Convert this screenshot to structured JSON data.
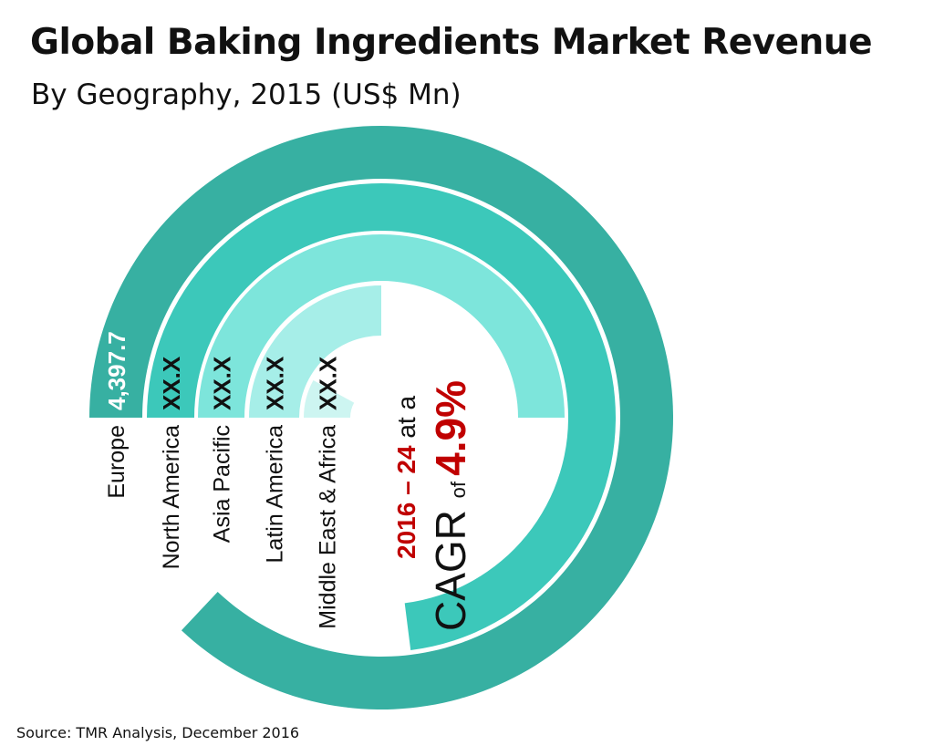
{
  "header": {
    "title": "Global Baking Ingredients Market Revenue",
    "subtitle": "By Geography, 2015 (US$ Mn)"
  },
  "footer": {
    "source": "Source: TMR Analysis, December 2016"
  },
  "chart_data": {
    "type": "radial-bar",
    "title": "Global Baking Ingredients Market Revenue",
    "subtitle": "By Geography, 2015 (US$ Mn)",
    "categories": [
      "Europe",
      "North America",
      "Asia Pacific",
      "Latin America",
      "Middle East & Africa"
    ],
    "value_labels": [
      "4,397.7",
      "XX.X",
      "XX.X",
      "XX.X",
      "XX.X"
    ],
    "values": [
      4397.7,
      null,
      null,
      null,
      null
    ],
    "arc_fraction_of_circle": [
      0.87,
      0.73,
      0.5,
      0.25,
      0.08
    ],
    "colors": [
      "#37B0A2",
      "#3CC8BA",
      "#7DE5DB",
      "#A6EEE8",
      "#CDF5F1"
    ],
    "value_label_colors": [
      "#FFFFFF",
      "#111111",
      "#111111",
      "#111111",
      "#111111"
    ],
    "cagr": {
      "period": "2016 – 24",
      "at": "at a",
      "label": "CAGR",
      "of": "of",
      "value": "4.9%",
      "highlight_color": "#C00000",
      "text_color": "#111111"
    }
  }
}
